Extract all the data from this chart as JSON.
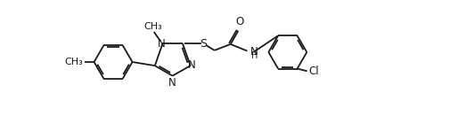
{
  "bg_color": "#ffffff",
  "line_color": "#1a1a1a",
  "line_width": 1.3,
  "font_size": 8.5,
  "figsize": [
    5.14,
    1.4
  ],
  "dpi": 100,
  "xlim": [
    0,
    10.5
  ],
  "ylim": [
    -1.5,
    2.5
  ]
}
